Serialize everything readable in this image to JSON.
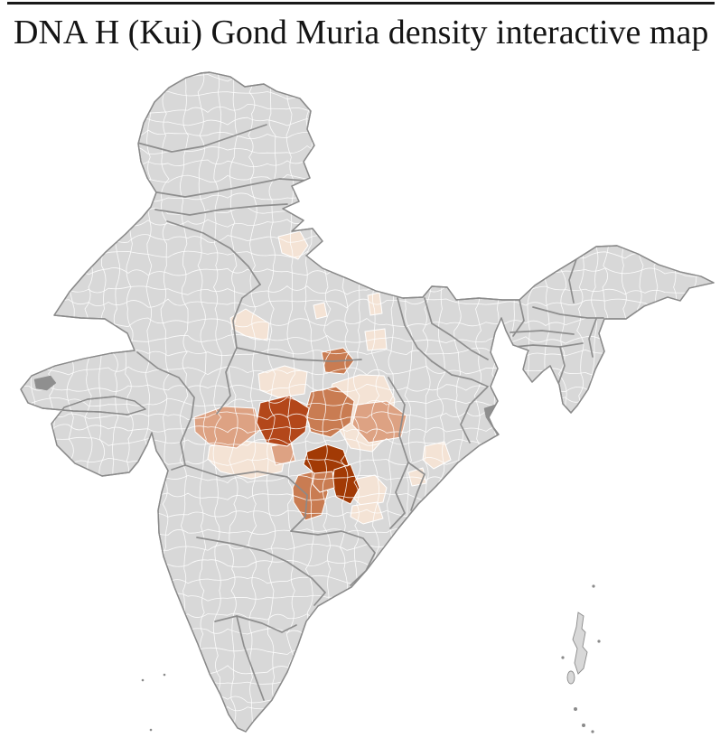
{
  "page": {
    "title": "DNA H (Kui) Gond Muria density interactive map"
  },
  "map": {
    "name": "India district-level density choropleth map",
    "palette": {
      "base": "#d8d8d8",
      "outline": "#8a8a8a",
      "state_border": "#8a8a8a",
      "district_border": "#ffffff",
      "nodata": "#8f8f8f",
      "density_1_lightest": "#f4e3d5",
      "density_2_light": "#eed3c0",
      "density_3_salmon": "#dda283",
      "density_4_medium": "#c97c52",
      "density_5_dark": "#b3471a",
      "density_6_darkest": "#a23a05"
    }
  }
}
